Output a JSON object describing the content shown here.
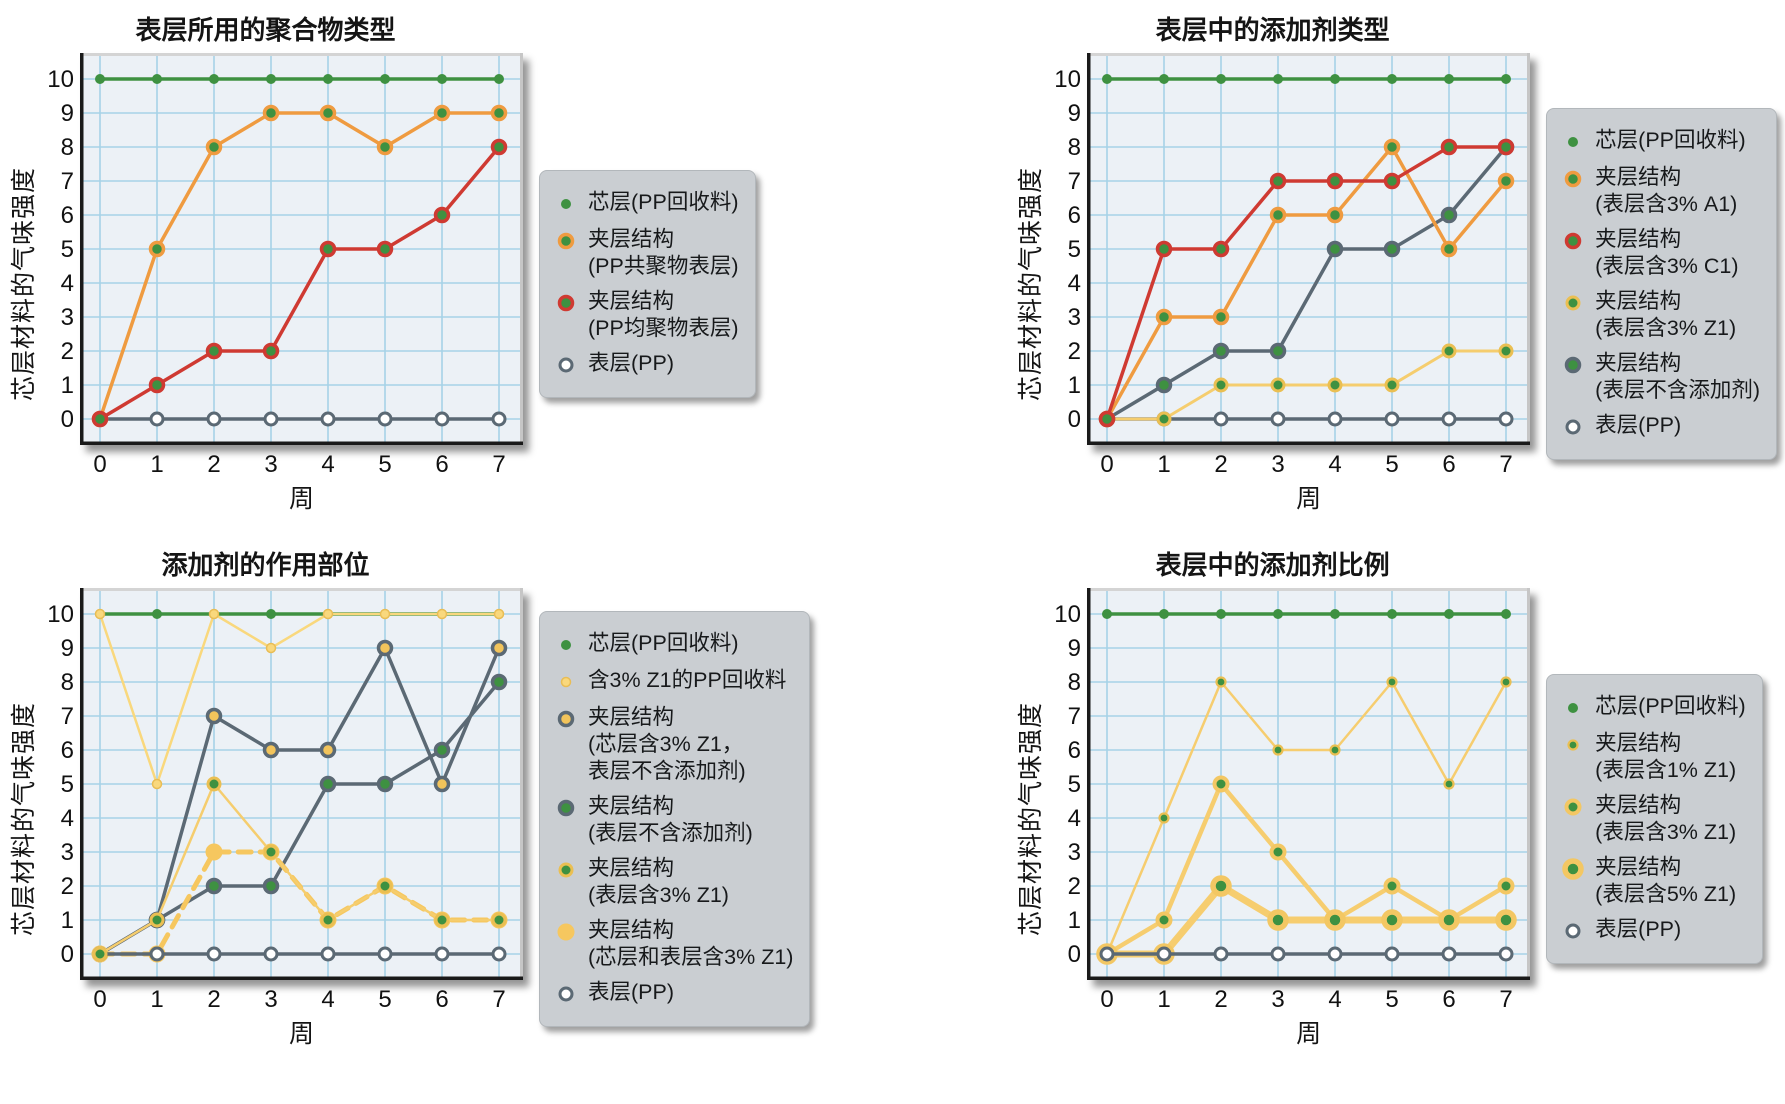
{
  "colors": {
    "green": "#3e9141",
    "orange": "#ef9b40",
    "red": "#cf3a32",
    "slate": "#5b6974",
    "yellow_line": "#f5cd6e",
    "yellow_ring": "#eabf52",
    "pale_yellow": "#f9d87d",
    "big_yellow": "#f6c75f",
    "grid": "#a6d2e7",
    "plot_bg": "#ecf1f6",
    "legend_bg": "#caced2",
    "axis": "#1a1a1a",
    "white": "#ffffff"
  },
  "chart_data": [
    {
      "type": "line",
      "title": "表层所用的聚合物类型",
      "xlabel": "周",
      "ylabel": "芯层材料的气味强度",
      "x": [
        0,
        1,
        2,
        3,
        4,
        5,
        6,
        7
      ],
      "ylim": [
        0,
        10
      ],
      "grid": true,
      "legend_position": "right",
      "series": [
        {
          "id": "core-pp-recyclate",
          "name": "芯层(PP回收料)",
          "label_lines": [
            "芯层(PP回收料)"
          ],
          "values": [
            10,
            10,
            10,
            10,
            10,
            10,
            10,
            10
          ],
          "color": "#3e9141",
          "line_width": 3.5,
          "z": 0,
          "marker": {
            "r": 5,
            "fill": "#3e9141",
            "ring": "#3e9141",
            "rw": 0
          }
        },
        {
          "id": "sandwich-pp-copolymer-skin",
          "name": "夹层结构(PP共聚物表层)",
          "label_lines": [
            "夹层结构",
            "(PP共聚物表层)"
          ],
          "values": [
            0,
            5,
            8,
            9,
            9,
            8,
            9,
            9
          ],
          "color": "#ef9b40",
          "line_width": 3.5,
          "z": 2,
          "marker": {
            "r": 6.5,
            "fill": "#3e9141",
            "ring": "#ef9b40",
            "rw": 3.5
          }
        },
        {
          "id": "sandwich-pp-homopolymer-skin",
          "name": "夹层结构(PP均聚物表层)",
          "label_lines": [
            "夹层结构",
            "(PP均聚物表层)"
          ],
          "values": [
            0,
            1,
            2,
            2,
            5,
            5,
            6,
            8
          ],
          "color": "#cf3a32",
          "line_width": 3.5,
          "z": 3,
          "marker": {
            "r": 6.5,
            "fill": "#3e9141",
            "ring": "#cf3a32",
            "rw": 3.5
          }
        },
        {
          "id": "skin-pp",
          "name": "表层(PP)",
          "label_lines": [
            "表层(PP)"
          ],
          "values": [
            0,
            0,
            0,
            0,
            0,
            0,
            0,
            0
          ],
          "color": "#5b6974",
          "line_width": 3.5,
          "z": 1,
          "marker": {
            "r": 6,
            "fill": "#ffffff",
            "ring": "#5b6974",
            "rw": 3
          }
        }
      ]
    },
    {
      "type": "line",
      "title": "表层中的添加剂类型",
      "xlabel": "周",
      "ylabel": "芯层材料的气味强度",
      "x": [
        0,
        1,
        2,
        3,
        4,
        5,
        6,
        7
      ],
      "ylim": [
        0,
        10
      ],
      "grid": true,
      "legend_position": "right",
      "series": [
        {
          "id": "core-pp-recyclate",
          "name": "芯层(PP回收料)",
          "label_lines": [
            "芯层(PP回收料)"
          ],
          "values": [
            10,
            10,
            10,
            10,
            10,
            10,
            10,
            10
          ],
          "color": "#3e9141",
          "line_width": 3.5,
          "z": 0,
          "marker": {
            "r": 5,
            "fill": "#3e9141",
            "ring": "#3e9141",
            "rw": 0
          }
        },
        {
          "id": "sandwich-skin-3pct-a1",
          "name": "夹层结构(表层含3% A1)",
          "label_lines": [
            "夹层结构",
            "(表层含3% A1)"
          ],
          "values": [
            0,
            3,
            3,
            6,
            6,
            8,
            5,
            7
          ],
          "color": "#ef9b40",
          "line_width": 3.5,
          "z": 4,
          "marker": {
            "r": 6.5,
            "fill": "#3e9141",
            "ring": "#ef9b40",
            "rw": 3.5
          }
        },
        {
          "id": "sandwich-skin-3pct-c1",
          "name": "夹层结构(表层含3% C1)",
          "label_lines": [
            "夹层结构",
            "(表层含3% C1)"
          ],
          "values": [
            0,
            5,
            5,
            7,
            7,
            7,
            8,
            8
          ],
          "color": "#cf3a32",
          "line_width": 3.5,
          "z": 5,
          "marker": {
            "r": 6.5,
            "fill": "#3e9141",
            "ring": "#cf3a32",
            "rw": 3.5
          }
        },
        {
          "id": "sandwich-skin-3pct-z1",
          "name": "夹层结构(表层含3% Z1)",
          "label_lines": [
            "夹层结构",
            "(表层含3% Z1)"
          ],
          "values": [
            0,
            0,
            1,
            1,
            1,
            1,
            2,
            2
          ],
          "color": "#f5cd6e",
          "line_width": 3,
          "z": 2,
          "marker": {
            "r": 6,
            "fill": "#3e9141",
            "ring": "#eabf52",
            "rw": 3
          }
        },
        {
          "id": "sandwich-skin-no-additive",
          "name": "夹层结构(表层不含添加剂)",
          "label_lines": [
            "夹层结构",
            "(表层不含添加剂)"
          ],
          "values": [
            0,
            1,
            2,
            2,
            5,
            5,
            6,
            8
          ],
          "color": "#5b6974",
          "line_width": 3.5,
          "z": 3,
          "marker": {
            "r": 6.5,
            "fill": "#3e9141",
            "ring": "#5b6974",
            "rw": 3.5
          }
        },
        {
          "id": "skin-pp",
          "name": "表层(PP)",
          "label_lines": [
            "表层(PP)"
          ],
          "values": [
            0,
            0,
            0,
            0,
            0,
            0,
            0,
            0
          ],
          "color": "#5b6974",
          "line_width": 3.5,
          "z": 1,
          "marker": {
            "r": 6,
            "fill": "#ffffff",
            "ring": "#5b6974",
            "rw": 3
          }
        }
      ]
    },
    {
      "type": "line",
      "title": "添加剂的作用部位",
      "xlabel": "周",
      "ylabel": "芯层材料的气味强度",
      "x": [
        0,
        1,
        2,
        3,
        4,
        5,
        6,
        7
      ],
      "ylim": [
        0,
        10
      ],
      "grid": true,
      "legend_position": "right",
      "series": [
        {
          "id": "core-pp-recyclate",
          "name": "芯层(PP回收料)",
          "label_lines": [
            "芯层(PP回收料)"
          ],
          "values": [
            10,
            10,
            10,
            10,
            10,
            10,
            10,
            10
          ],
          "color": "#3e9141",
          "line_width": 3.5,
          "z": 0,
          "marker": {
            "r": 5,
            "fill": "#3e9141",
            "ring": "#3e9141",
            "rw": 0
          }
        },
        {
          "id": "recyclate-with-3pct-z1",
          "name": "含3% Z1的PP回收料",
          "label_lines": [
            "含3% Z1的PP回收料"
          ],
          "values": [
            10,
            5,
            10,
            9,
            10,
            10,
            10,
            10
          ],
          "color": "#f9d87d",
          "line_width": 2.5,
          "z": 1,
          "marker": {
            "r": 4.5,
            "fill": "#f9d87d",
            "ring": "#e9bd55",
            "rw": 1.5
          }
        },
        {
          "id": "sandwich-core-3pct-z1-skin-none",
          "name": "夹层结构(芯层含3% Z1，表层不含添加剂)",
          "label_lines": [
            "夹层结构",
            "(芯层含3% Z1，",
            "表层不含添加剂)"
          ],
          "values": [
            0,
            1,
            7,
            6,
            6,
            9,
            5,
            9
          ],
          "color": "#5b6974",
          "line_width": 3.5,
          "z": 2,
          "marker": {
            "r": 6.5,
            "fill": "#f2c45b",
            "ring": "#5b6974",
            "rw": 3.5
          }
        },
        {
          "id": "sandwich-skin-no-additive",
          "name": "夹层结构(表层不含添加剂)",
          "label_lines": [
            "夹层结构",
            "(表层不含添加剂)"
          ],
          "values": [
            0,
            1,
            2,
            2,
            5,
            5,
            6,
            8
          ],
          "color": "#5b6974",
          "line_width": 3.5,
          "z": 3,
          "marker": {
            "r": 6.5,
            "fill": "#3e9141",
            "ring": "#5b6974",
            "rw": 3.5
          }
        },
        {
          "id": "sandwich-skin-3pct-z1",
          "name": "夹层结构(表层含3% Z1)",
          "label_lines": [
            "夹层结构",
            "(表层含3% Z1)"
          ],
          "values": [
            0,
            1,
            5,
            3,
            1,
            2,
            1,
            1
          ],
          "color": "#f5cd6e",
          "line_width": 2.5,
          "z": 6,
          "marker": {
            "r": 6,
            "fill": "#3e9141",
            "ring": "#eabf52",
            "rw": 3
          }
        },
        {
          "id": "sandwich-core-and-skin-3pct-z1",
          "name": "夹层结构(芯层和表层含3% Z1)",
          "label_lines": [
            "夹层结构",
            "(芯层和表层含3% Z1)"
          ],
          "values": [
            0,
            0,
            3,
            3,
            1,
            2,
            1,
            1
          ],
          "color": "#f6c75f",
          "line_width": 5,
          "dash": "13 9",
          "z": 4,
          "marker": {
            "r": 8.5,
            "fill": "#f6c75f",
            "ring": "#f6c75f",
            "rw": 0
          }
        },
        {
          "id": "skin-pp",
          "name": "表层(PP)",
          "label_lines": [
            "表层(PP)"
          ],
          "values": [
            0,
            0,
            0,
            0,
            0,
            0,
            0,
            0
          ],
          "color": "#5b6974",
          "line_width": 3.5,
          "z": 5,
          "marker": {
            "r": 6,
            "fill": "#ffffff",
            "ring": "#5b6974",
            "rw": 3
          }
        }
      ]
    },
    {
      "type": "line",
      "title": "表层中的添加剂比例",
      "xlabel": "周",
      "ylabel": "芯层材料的气味强度",
      "x": [
        0,
        1,
        2,
        3,
        4,
        5,
        6,
        7
      ],
      "ylim": [
        0,
        10
      ],
      "grid": true,
      "legend_position": "right",
      "series": [
        {
          "id": "core-pp-recyclate",
          "name": "芯层(PP回收料)",
          "label_lines": [
            "芯层(PP回收料)"
          ],
          "values": [
            10,
            10,
            10,
            10,
            10,
            10,
            10,
            10
          ],
          "color": "#3e9141",
          "line_width": 3.5,
          "z": 0,
          "marker": {
            "r": 5,
            "fill": "#3e9141",
            "ring": "#3e9141",
            "rw": 0
          }
        },
        {
          "id": "sandwich-skin-1pct-z1",
          "name": "夹层结构(表层含1% Z1)",
          "label_lines": [
            "夹层结构",
            "(表层含1% Z1)"
          ],
          "values": [
            0,
            4,
            8,
            6,
            6,
            8,
            5,
            8
          ],
          "color": "#f6cd6f",
          "line_width": 2.5,
          "z": 1,
          "marker": {
            "r": 4.5,
            "fill": "#3e9141",
            "ring": "#eabf52",
            "rw": 2.2
          }
        },
        {
          "id": "sandwich-skin-3pct-z1",
          "name": "夹层结构(表层含3% Z1)",
          "label_lines": [
            "夹层结构",
            "(表层含3% Z1)"
          ],
          "values": [
            0,
            1,
            5,
            3,
            1,
            2,
            1,
            2
          ],
          "color": "#f6cd6f",
          "line_width": 4.5,
          "z": 2,
          "marker": {
            "r": 6.5,
            "fill": "#3e9141",
            "ring": "#f3c763",
            "rw": 4
          }
        },
        {
          "id": "sandwich-skin-5pct-z1",
          "name": "夹层结构(表层含5% Z1)",
          "label_lines": [
            "夹层结构",
            "(表层含5% Z1)"
          ],
          "values": [
            0,
            0,
            2,
            1,
            1,
            1,
            1,
            1
          ],
          "color": "#f6cd6f",
          "line_width": 7,
          "z": 3,
          "marker": {
            "r": 8,
            "fill": "#3e9141",
            "ring": "#f3c763",
            "rw": 5.5
          }
        },
        {
          "id": "skin-pp",
          "name": "表层(PP)",
          "label_lines": [
            "表层(PP)"
          ],
          "values": [
            0,
            0,
            0,
            0,
            0,
            0,
            0,
            0
          ],
          "color": "#5b6974",
          "line_width": 3.5,
          "z": 4,
          "marker": {
            "r": 6,
            "fill": "#ffffff",
            "ring": "#5b6974",
            "rw": 3
          }
        }
      ]
    }
  ]
}
